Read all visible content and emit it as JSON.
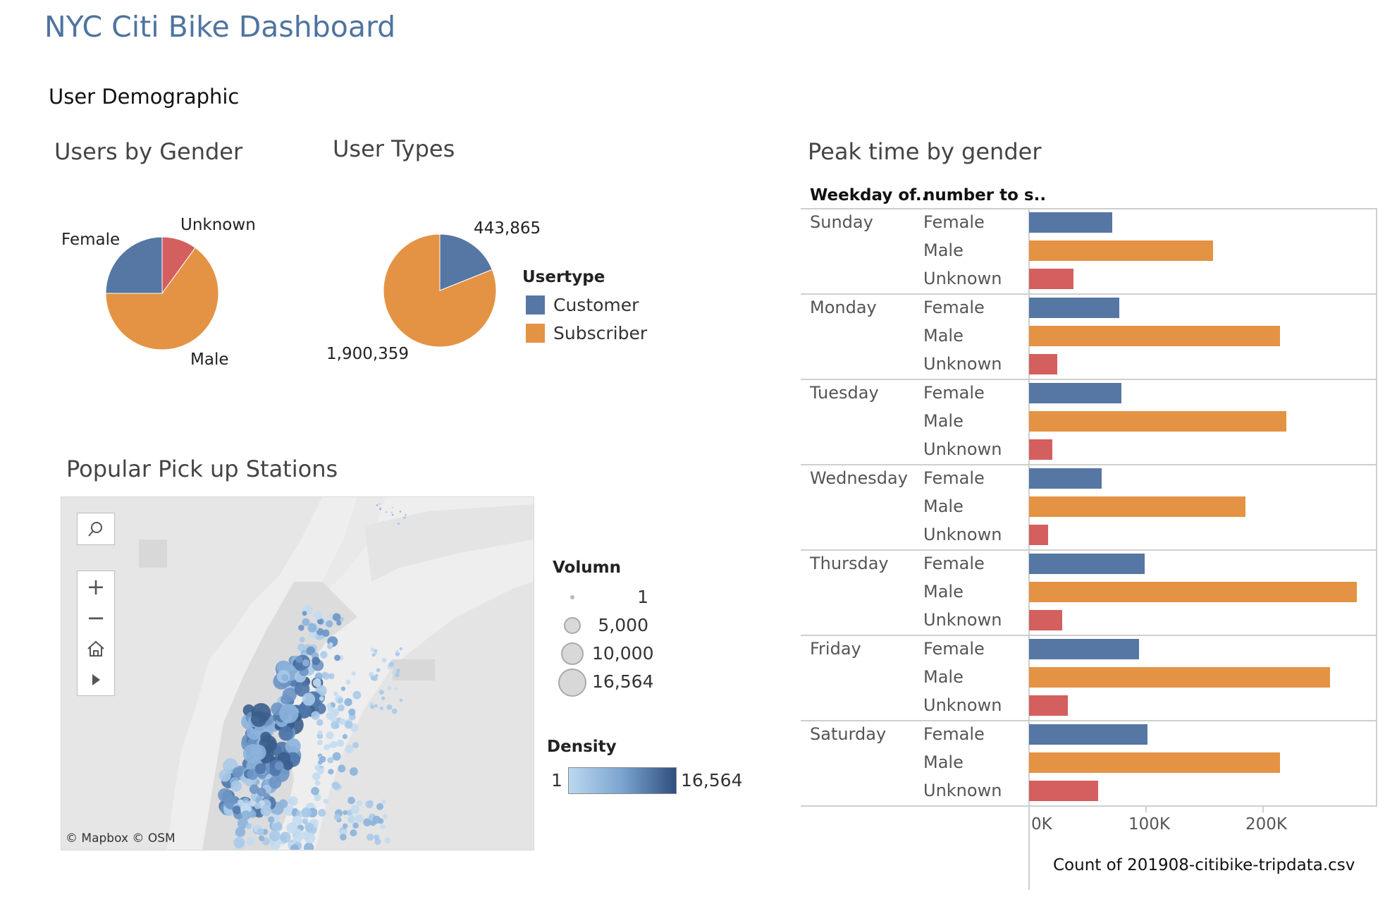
{
  "dashboard": {
    "title": "NYC Citi Bike Dashboard",
    "section": "User Demographic"
  },
  "gender_pie": {
    "title": "Users by Gender",
    "labels": {
      "female": "Female",
      "unknown": "Unknown",
      "male": "Male"
    }
  },
  "usertype_pie": {
    "title": "User Types",
    "customer_label": "443,865",
    "subscriber_label": "1,900,359",
    "legend_title": "Usertype",
    "legend": [
      "Customer",
      "Subscriber"
    ]
  },
  "map": {
    "title": "Popular Pick up Stations",
    "attribution": "© Mapbox  © OSM",
    "tools": [
      "search-icon",
      "zoom-in-icon",
      "zoom-out-icon",
      "home-icon",
      "play-icon"
    ],
    "volume_title": "Volumn",
    "volume_legend": [
      "1",
      "5,000",
      "10,000",
      "16,564"
    ],
    "density_title": "Density",
    "density_min": "1",
    "density_max": "16,564"
  },
  "colors": {
    "female": "#5677a4",
    "male": "#e49344",
    "unknown": "#d45f5f",
    "customer": "#5677a4",
    "subscriber": "#e49344",
    "title": "#4e74a0"
  },
  "peak": {
    "title": "Peak time by gender",
    "header_day": "Weekday of..",
    "header_gender": "number to s..",
    "xlabel": "Count of 201908-citibike-tripdata.csv",
    "ticks": [
      "0K",
      "100K",
      "200K"
    ]
  },
  "chart_data": [
    {
      "type": "pie",
      "title": "Users by Gender",
      "categories": [
        "Female",
        "Unknown",
        "Male"
      ],
      "values": [
        25,
        10,
        65
      ]
    },
    {
      "type": "pie",
      "title": "User Types",
      "categories": [
        "Customer",
        "Subscriber"
      ],
      "values": [
        443865,
        1900359
      ]
    },
    {
      "type": "bar",
      "title": "Peak time by gender",
      "xlabel": "Count of 201908-citibike-tripdata.csv",
      "xlim": [
        0,
        295000
      ],
      "categories": [
        "Sunday",
        "Monday",
        "Tuesday",
        "Wednesday",
        "Thursday",
        "Friday",
        "Saturday"
      ],
      "series": [
        {
          "name": "Female",
          "values": [
            71000,
            77000,
            79000,
            62000,
            99000,
            94000,
            101000
          ]
        },
        {
          "name": "Male",
          "values": [
            157000,
            214000,
            220000,
            185000,
            280000,
            257000,
            214000
          ]
        },
        {
          "name": "Unknown",
          "values": [
            38000,
            24000,
            20000,
            16000,
            28000,
            33000,
            59000
          ]
        }
      ]
    }
  ]
}
